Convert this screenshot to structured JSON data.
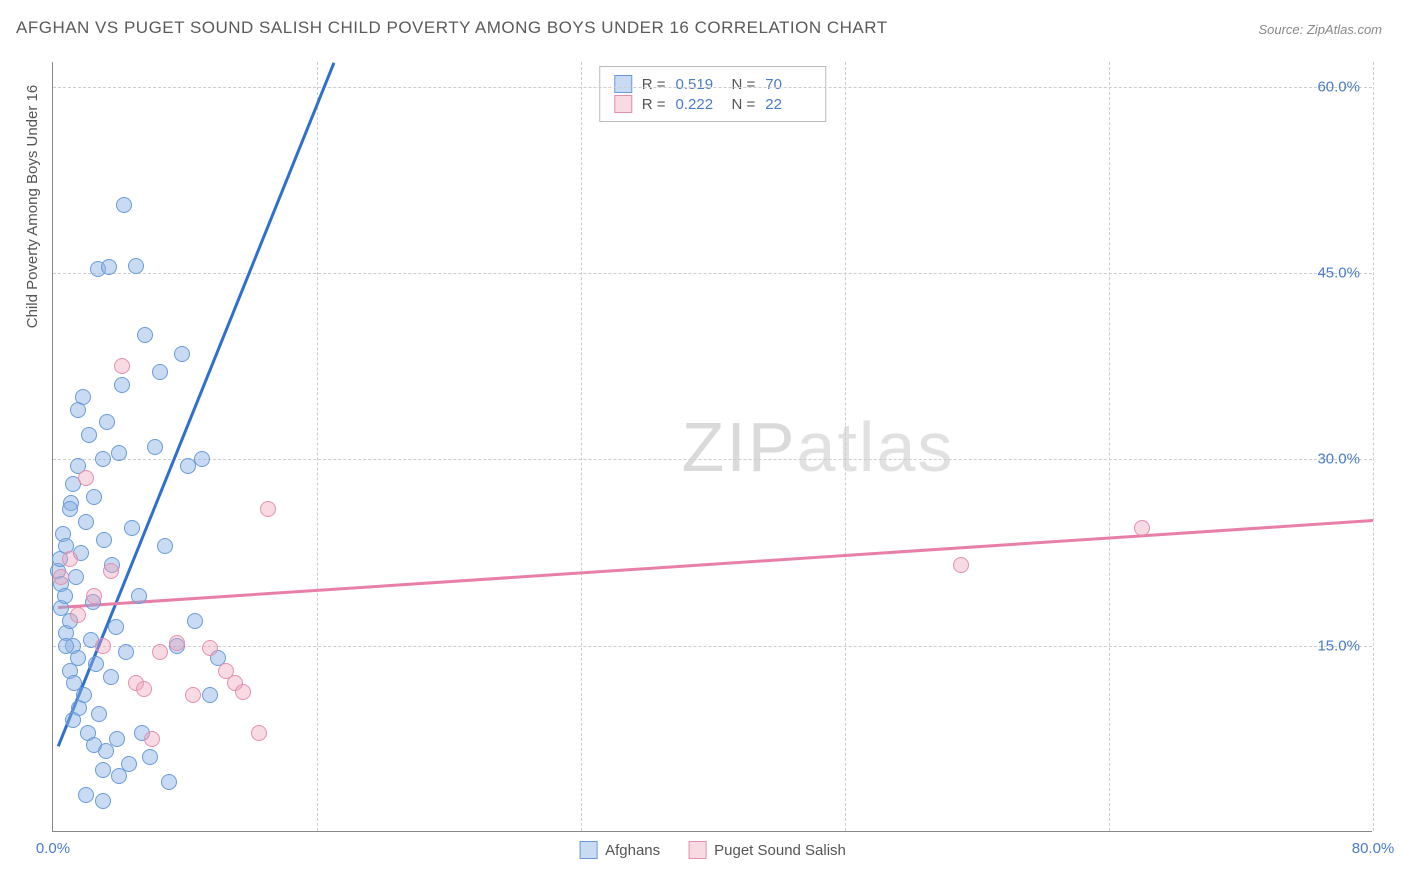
{
  "title": "AFGHAN VS PUGET SOUND SALISH CHILD POVERTY AMONG BOYS UNDER 16 CORRELATION CHART",
  "source": "Source: ZipAtlas.com",
  "watermark_a": "ZIP",
  "watermark_b": "atlas",
  "chart": {
    "type": "scatter",
    "ylabel": "Child Poverty Among Boys Under 16",
    "xlim": [
      0,
      80
    ],
    "ylim": [
      0,
      62
    ],
    "xtick_labels": [
      "0.0%",
      "80.0%"
    ],
    "xtick_positions": [
      0,
      80
    ],
    "ytick_labels": [
      "15.0%",
      "30.0%",
      "45.0%",
      "60.0%"
    ],
    "ytick_positions": [
      15,
      30,
      45,
      60
    ],
    "vgrid_positions": [
      16,
      32,
      48,
      64,
      80
    ],
    "hgrid_positions": [
      15,
      30,
      45,
      60
    ],
    "background_color": "#ffffff",
    "grid_color": "#cccccc",
    "axis_color": "#888888",
    "tick_label_color": "#4a7bc8",
    "label_color": "#555555",
    "label_fontsize": 15,
    "title_color": "#5a5a5a",
    "title_fontsize": 17,
    "marker_size": 16,
    "series": [
      {
        "name": "Afghans",
        "color": "#87b0e2",
        "border_color": "#6a9bd8",
        "fill_opacity": 0.45,
        "R": "0.519",
        "N": "70",
        "trend": {
          "x1": 0.3,
          "y1": 7,
          "x2": 17,
          "y2": 62,
          "color": "#2f6fd0",
          "width": 2.5
        },
        "points": [
          [
            0.3,
            21
          ],
          [
            0.4,
            22
          ],
          [
            0.5,
            18
          ],
          [
            0.5,
            20
          ],
          [
            0.6,
            24
          ],
          [
            0.7,
            19
          ],
          [
            0.8,
            16
          ],
          [
            0.8,
            23
          ],
          [
            1.0,
            13
          ],
          [
            1.0,
            17
          ],
          [
            1.1,
            26.5
          ],
          [
            1.2,
            15
          ],
          [
            1.2,
            28
          ],
          [
            1.3,
            12
          ],
          [
            1.4,
            20.5
          ],
          [
            1.5,
            14
          ],
          [
            1.5,
            29.5
          ],
          [
            1.6,
            10
          ],
          [
            1.7,
            22.5
          ],
          [
            1.8,
            35
          ],
          [
            1.9,
            11
          ],
          [
            2.0,
            25
          ],
          [
            2.1,
            8
          ],
          [
            2.2,
            32
          ],
          [
            2.3,
            15.5
          ],
          [
            2.4,
            18.5
          ],
          [
            2.5,
            27
          ],
          [
            2.6,
            13.5
          ],
          [
            2.7,
            45.3
          ],
          [
            2.8,
            9.5
          ],
          [
            3.0,
            5
          ],
          [
            3.0,
            30
          ],
          [
            3.1,
            23.5
          ],
          [
            3.2,
            6.5
          ],
          [
            3.3,
            33
          ],
          [
            3.4,
            45.5
          ],
          [
            3.5,
            12.5
          ],
          [
            3.6,
            21.5
          ],
          [
            3.8,
            16.5
          ],
          [
            3.9,
            7.5
          ],
          [
            4.0,
            30.5
          ],
          [
            4.2,
            36
          ],
          [
            4.3,
            50.5
          ],
          [
            4.4,
            14.5
          ],
          [
            4.6,
            5.5
          ],
          [
            4.8,
            24.5
          ],
          [
            5.0,
            45.6
          ],
          [
            5.2,
            19
          ],
          [
            5.4,
            8
          ],
          [
            5.6,
            40
          ],
          [
            5.9,
            6
          ],
          [
            6.2,
            31
          ],
          [
            6.5,
            37
          ],
          [
            6.8,
            23
          ],
          [
            7.0,
            4
          ],
          [
            7.5,
            15
          ],
          [
            7.8,
            38.5
          ],
          [
            8.2,
            29.5
          ],
          [
            8.6,
            17
          ],
          [
            9.0,
            30
          ],
          [
            9.5,
            11
          ],
          [
            10,
            14
          ],
          [
            2.0,
            3
          ],
          [
            3.0,
            2.5
          ],
          [
            1.0,
            26
          ],
          [
            1.5,
            34
          ],
          [
            0.8,
            15
          ],
          [
            1.2,
            9
          ],
          [
            2.5,
            7
          ],
          [
            4.0,
            4.5
          ]
        ]
      },
      {
        "name": "Puget Sound Salish",
        "color": "#eea2ba",
        "border_color": "#e58fb0",
        "fill_opacity": 0.4,
        "R": "0.222",
        "N": "22",
        "trend": {
          "x1": 0.3,
          "y1": 18.2,
          "x2": 80,
          "y2": 25.2,
          "color": "#e87fa8",
          "width": 2.5
        },
        "points": [
          [
            0.5,
            20.5
          ],
          [
            1.0,
            22
          ],
          [
            1.5,
            17.5
          ],
          [
            2.0,
            28.5
          ],
          [
            2.5,
            19
          ],
          [
            3.0,
            15
          ],
          [
            3.5,
            21
          ],
          [
            4.2,
            37.5
          ],
          [
            5.0,
            12
          ],
          [
            5.5,
            11.5
          ],
          [
            6.5,
            14.5
          ],
          [
            7.5,
            15.2
          ],
          [
            8.5,
            11
          ],
          [
            9.5,
            14.8
          ],
          [
            10.5,
            13
          ],
          [
            11,
            12
          ],
          [
            11.5,
            11.3
          ],
          [
            12.5,
            8
          ],
          [
            13,
            26
          ],
          [
            55,
            21.5
          ],
          [
            66,
            24.5
          ],
          [
            6,
            7.5
          ]
        ]
      }
    ],
    "legend_stats_labels": {
      "R": "R =",
      "N": "N ="
    },
    "series_legend_labels": [
      "Afghans",
      "Puget Sound Salish"
    ]
  }
}
